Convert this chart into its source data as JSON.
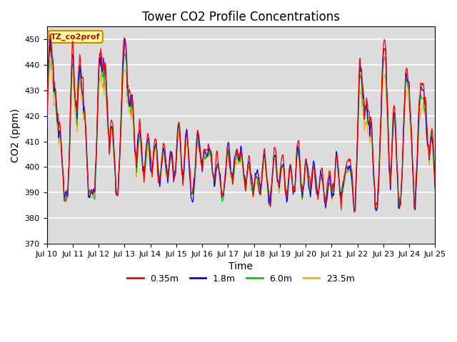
{
  "title": "Tower CO2 Profile Concentrations",
  "xlabel": "Time",
  "ylabel": "CO2 (ppm)",
  "ylim": [
    370,
    455
  ],
  "yticks": [
    370,
    380,
    390,
    400,
    410,
    420,
    430,
    440,
    450
  ],
  "legend_label": "TZ_co2prof",
  "series": [
    "0.35m",
    "1.8m",
    "6.0m",
    "23.5m"
  ],
  "colors": [
    "#ff0000",
    "#0000ff",
    "#00cc00",
    "#ffaa00"
  ],
  "plot_bg_color": "#dcdcdc",
  "n_days": 15,
  "xtick_labels": [
    "Jul 10",
    "Jul 11",
    "Jul 12",
    "Jul 13",
    "Jul 14",
    "Jul 15",
    "Jul 16",
    "Jul 17",
    "Jul 18",
    "Jul 19",
    "Jul 20",
    "Jul 21",
    "Jul 22",
    "Jul 23",
    "Jul 24",
    "Jul 25"
  ],
  "grid_color": "#ffffff",
  "title_fontsize": 12,
  "axis_fontsize": 10,
  "tick_fontsize": 8
}
